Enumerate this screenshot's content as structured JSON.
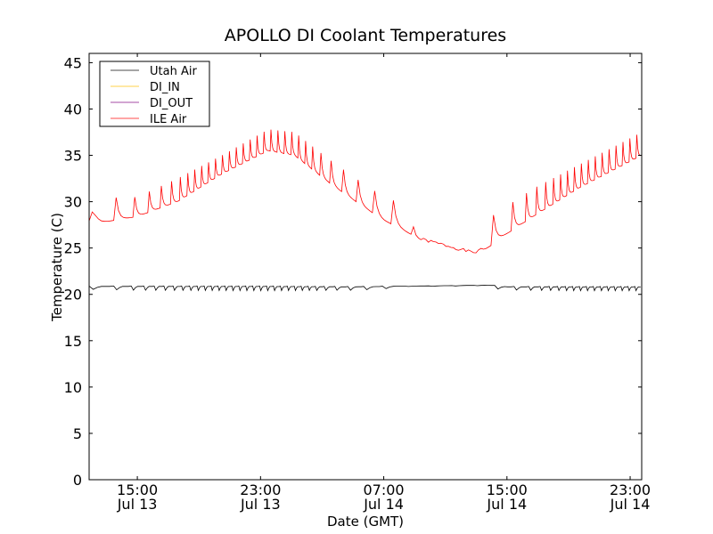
{
  "chart_data": {
    "type": "line",
    "title": "APOLLO DI Coolant Temperatures",
    "xlabel": "Date (GMT)",
    "ylabel": "Temperature (C)",
    "ylim": [
      0,
      46
    ],
    "yticks": [
      0,
      5,
      10,
      15,
      20,
      25,
      30,
      35,
      40,
      45
    ],
    "xlim_hours": [
      -3.13,
      32.75
    ],
    "x_units": "hours since 15:00 Jul 13 (GMT)",
    "xticks": [
      {
        "hours": 0,
        "line1": "15:00",
        "line2": "Jul 13"
      },
      {
        "hours": 8,
        "line1": "23:00",
        "line2": "Jul 13"
      },
      {
        "hours": 16,
        "line1": "07:00",
        "line2": "Jul 14"
      },
      {
        "hours": 24,
        "line1": "15:00",
        "line2": "Jul 14"
      },
      {
        "hours": 32,
        "line1": "23:00",
        "line2": "Jul 14"
      }
    ],
    "grid": false,
    "legend_position": "top-left",
    "series": [
      {
        "name": "Utah Air",
        "color": "#000000",
        "baseline": [
          [
            -3.13,
            20.9
          ],
          [
            2,
            20.9
          ],
          [
            8,
            20.9
          ],
          [
            14,
            20.85
          ],
          [
            18,
            20.9
          ],
          [
            23,
            21.0
          ],
          [
            24,
            20.85
          ],
          [
            32.75,
            20.85
          ]
        ],
        "dip_depth": [
          [
            -3.13,
            0.35
          ],
          [
            0,
            0.45
          ],
          [
            8,
            0.5
          ],
          [
            14,
            0.4
          ],
          [
            16,
            0.3
          ],
          [
            17,
            0.05
          ],
          [
            22.5,
            0.05
          ],
          [
            23,
            0.35
          ],
          [
            28,
            0.45
          ],
          [
            32.75,
            0.45
          ]
        ],
        "period_hours": [
          [
            -3.13,
            1.6
          ],
          [
            0,
            0.7
          ],
          [
            4,
            0.45
          ],
          [
            11,
            0.45
          ],
          [
            14,
            1.1
          ],
          [
            17,
            1.6
          ],
          [
            23,
            1.3
          ],
          [
            26,
            0.6
          ],
          [
            28,
            0.45
          ],
          [
            32.75,
            0.45
          ]
        ]
      },
      {
        "name": "DI_IN",
        "color": "#ffbf00",
        "points": []
      },
      {
        "name": "DI_OUT",
        "color": "#800080",
        "points": []
      },
      {
        "name": "ILE Air",
        "color": "#ff0000",
        "low": [
          [
            -3.13,
            28.0
          ],
          [
            -2.5,
            27.7
          ],
          [
            0,
            28.4
          ],
          [
            2.6,
            30.0
          ],
          [
            5.5,
            33.0
          ],
          [
            8.5,
            35.5
          ],
          [
            10.2,
            35.0
          ],
          [
            12.5,
            32.0
          ],
          [
            14.2,
            30.0
          ],
          [
            16,
            28.0
          ],
          [
            17.2,
            27.0
          ],
          [
            18.3,
            26.0
          ],
          [
            20,
            25.3
          ],
          [
            21.8,
            24.5
          ],
          [
            22.7,
            25.0
          ],
          [
            23.0,
            25.3
          ],
          [
            23.5,
            26.0
          ],
          [
            25.8,
            28.5
          ],
          [
            28.7,
            31.5
          ],
          [
            31.6,
            34.0
          ],
          [
            32.75,
            35.0
          ]
        ],
        "high": [
          [
            -3.13,
            28.2
          ],
          [
            -2.5,
            30.4
          ],
          [
            0,
            30.5
          ],
          [
            2.6,
            32.5
          ],
          [
            5.5,
            35.0
          ],
          [
            8.5,
            37.8
          ],
          [
            10.2,
            37.5
          ],
          [
            12.5,
            34.5
          ],
          [
            14.2,
            32.5
          ],
          [
            16,
            30.5
          ],
          [
            17.2,
            29.8
          ],
          [
            18.3,
            26.0
          ],
          [
            20,
            25.3
          ],
          [
            21.8,
            24.5
          ],
          [
            22.7,
            25.0
          ],
          [
            23.0,
            28.4
          ],
          [
            23.5,
            29.0
          ],
          [
            25.8,
            31.5
          ],
          [
            28.7,
            34.0
          ],
          [
            31.6,
            36.5
          ],
          [
            32.75,
            37.5
          ]
        ],
        "period_hours": [
          [
            -3.13,
            1.6
          ],
          [
            0,
            0.9
          ],
          [
            3,
            0.45
          ],
          [
            11,
            0.45
          ],
          [
            13,
            0.9
          ],
          [
            16,
            1.3
          ],
          [
            17.2,
            1.3
          ],
          [
            23,
            1.3
          ],
          [
            25,
            0.7
          ],
          [
            27,
            0.45
          ],
          [
            32.75,
            0.45
          ]
        ]
      }
    ]
  }
}
